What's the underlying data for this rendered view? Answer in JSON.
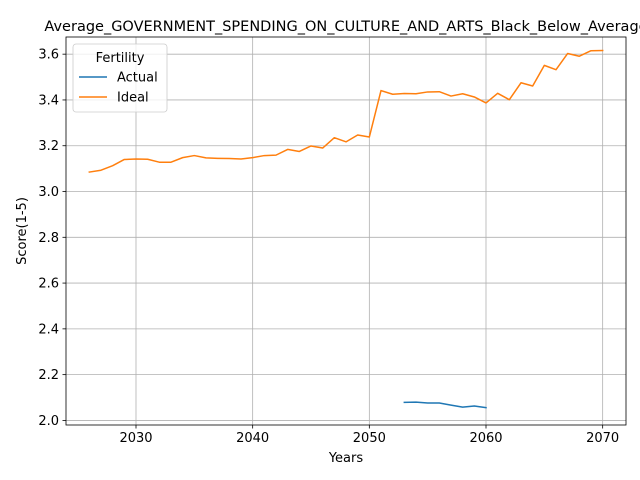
{
  "chart_data": {
    "type": "line",
    "title": "Average_GOVERNMENT_SPENDING_ON_CULTURE_AND_ARTS_Black_Below_Average",
    "xlabel": "Years",
    "ylabel": "Score(1-5)",
    "xlim": [
      2024,
      2072
    ],
    "ylim": [
      1.98,
      3.675
    ],
    "xticks": [
      2030,
      2040,
      2050,
      2060,
      2070
    ],
    "yticks": [
      2.0,
      2.2,
      2.4,
      2.6,
      2.8,
      3.0,
      3.2,
      3.4,
      3.6
    ],
    "xtick_labels": [
      "2030",
      "2040",
      "2050",
      "2060",
      "2070"
    ],
    "ytick_labels": [
      "2.0",
      "2.2",
      "2.4",
      "2.6",
      "2.8",
      "3.0",
      "3.2",
      "3.4",
      "3.6"
    ],
    "grid": true,
    "legend": {
      "title": "Fertility",
      "position": "top-left"
    },
    "series": [
      {
        "name": "Actual",
        "color": "#1f77b4",
        "x": [
          2053,
          2054,
          2055,
          2056,
          2057,
          2058,
          2059,
          2060
        ],
        "y": [
          2.079,
          2.08,
          2.076,
          2.076,
          2.067,
          2.058,
          2.063,
          2.056
        ]
      },
      {
        "name": "Ideal",
        "color": "#ff7f0e",
        "x": [
          2026,
          2027,
          2028,
          2029,
          2030,
          2031,
          2032,
          2033,
          2034,
          2035,
          2036,
          2037,
          2038,
          2039,
          2040,
          2041,
          2042,
          2043,
          2044,
          2045,
          2046,
          2047,
          2048,
          2049,
          2050,
          2051,
          2052,
          2053,
          2054,
          2055,
          2056,
          2057,
          2058,
          2059,
          2060,
          2061,
          2062,
          2063,
          2064,
          2065,
          2066,
          2067,
          2068,
          2069,
          2070
        ],
        "y": [
          3.085,
          3.093,
          3.113,
          3.14,
          3.142,
          3.141,
          3.128,
          3.128,
          3.148,
          3.157,
          3.147,
          3.145,
          3.144,
          3.142,
          3.148,
          3.157,
          3.159,
          3.184,
          3.175,
          3.199,
          3.19,
          3.235,
          3.217,
          3.247,
          3.238,
          3.441,
          3.425,
          3.428,
          3.427,
          3.435,
          3.436,
          3.417,
          3.427,
          3.413,
          3.387,
          3.429,
          3.401,
          3.475,
          3.461,
          3.551,
          3.532,
          3.603,
          3.591,
          3.615,
          3.616
        ]
      }
    ]
  }
}
